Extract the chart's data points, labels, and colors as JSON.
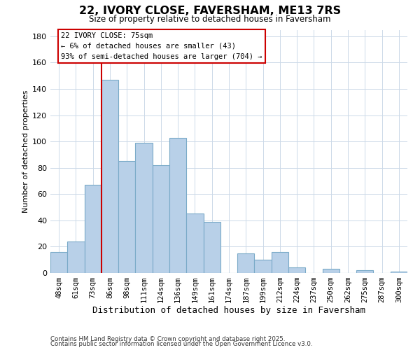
{
  "title": "22, IVORY CLOSE, FAVERSHAM, ME13 7RS",
  "subtitle": "Size of property relative to detached houses in Faversham",
  "xlabel": "Distribution of detached houses by size in Faversham",
  "ylabel": "Number of detached properties",
  "bar_labels": [
    "48sqm",
    "61sqm",
    "73sqm",
    "86sqm",
    "98sqm",
    "111sqm",
    "124sqm",
    "136sqm",
    "149sqm",
    "161sqm",
    "174sqm",
    "187sqm",
    "199sqm",
    "212sqm",
    "224sqm",
    "237sqm",
    "250sqm",
    "262sqm",
    "275sqm",
    "287sqm",
    "300sqm"
  ],
  "bar_values": [
    16,
    24,
    67,
    147,
    85,
    99,
    82,
    103,
    45,
    39,
    0,
    15,
    10,
    16,
    4,
    0,
    3,
    0,
    2,
    0,
    1
  ],
  "bar_color": "#b8d0e8",
  "bar_edge_color": "#7aaac8",
  "ylim": [
    0,
    185
  ],
  "yticks": [
    0,
    20,
    40,
    60,
    80,
    100,
    120,
    140,
    160,
    180
  ],
  "vline_color": "#cc0000",
  "annotation_title": "22 IVORY CLOSE: 75sqm",
  "annotation_line1": "← 6% of detached houses are smaller (43)",
  "annotation_line2": "93% of semi-detached houses are larger (704) →",
  "footer1": "Contains HM Land Registry data © Crown copyright and database right 2025.",
  "footer2": "Contains public sector information licensed under the Open Government Licence v3.0.",
  "background_color": "#ffffff",
  "grid_color": "#ccd9e8"
}
